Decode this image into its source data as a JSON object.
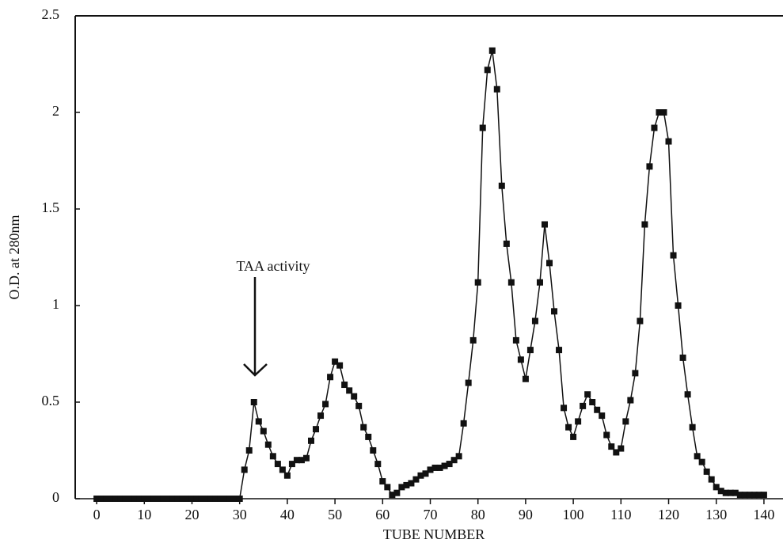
{
  "chart_data": {
    "type": "line",
    "xlabel": "TUBE NUMBER",
    "ylabel": "O.D. at 280nm",
    "annotation": "TAA activity",
    "x": [
      0,
      1,
      2,
      3,
      4,
      5,
      6,
      7,
      8,
      9,
      10,
      11,
      12,
      13,
      14,
      15,
      16,
      17,
      18,
      19,
      20,
      21,
      22,
      23,
      24,
      25,
      26,
      27,
      28,
      29,
      30,
      31,
      32,
      33,
      34,
      35,
      36,
      37,
      38,
      39,
      40,
      41,
      42,
      43,
      44,
      45,
      46,
      47,
      48,
      49,
      50,
      51,
      52,
      53,
      54,
      55,
      56,
      57,
      58,
      59,
      60,
      61,
      62,
      63,
      64,
      65,
      66,
      67,
      68,
      69,
      70,
      71,
      72,
      73,
      74,
      75,
      76,
      77,
      78,
      79,
      80,
      81,
      82,
      83,
      84,
      85,
      86,
      87,
      88,
      89,
      90,
      91,
      92,
      93,
      94,
      95,
      96,
      97,
      98,
      99,
      100,
      101,
      102,
      103,
      104,
      105,
      106,
      107,
      108,
      109,
      110,
      111,
      112,
      113,
      114,
      115,
      116,
      117,
      118,
      119,
      120,
      121,
      122,
      123,
      124,
      125,
      126,
      127,
      128,
      129,
      130,
      131,
      132,
      133,
      134,
      135,
      136,
      137,
      138,
      139,
      140
    ],
    "series": [
      {
        "color": "#111111",
        "values": [
          0,
          0,
          0,
          0,
          0,
          0,
          0,
          0,
          0,
          0,
          0,
          0,
          0,
          0,
          0,
          0,
          0,
          0,
          0,
          0,
          0,
          0,
          0,
          0,
          0,
          0,
          0,
          0,
          0,
          0,
          0,
          0.15,
          0.25,
          0.5,
          0.4,
          0.35,
          0.28,
          0.22,
          0.18,
          0.15,
          0.12,
          0.18,
          0.2,
          0.2,
          0.21,
          0.3,
          0.36,
          0.43,
          0.49,
          0.63,
          0.71,
          0.69,
          0.59,
          0.56,
          0.53,
          0.48,
          0.37,
          0.32,
          0.25,
          0.18,
          0.09,
          0.06,
          0.02,
          0.03,
          0.06,
          0.07,
          0.08,
          0.1,
          0.12,
          0.13,
          0.15,
          0.16,
          0.16,
          0.17,
          0.18,
          0.2,
          0.22,
          0.39,
          0.6,
          0.82,
          1.12,
          1.92,
          2.22,
          2.32,
          2.12,
          1.62,
          1.32,
          1.12,
          0.82,
          0.72,
          0.62,
          0.77,
          0.92,
          1.12,
          1.42,
          1.22,
          0.97,
          0.77,
          0.47,
          0.37,
          0.32,
          0.4,
          0.48,
          0.54,
          0.5,
          0.46,
          0.43,
          0.33,
          0.27,
          0.24,
          0.26,
          0.4,
          0.51,
          0.65,
          0.92,
          1.42,
          1.72,
          1.92,
          2.0,
          2.0,
          1.85,
          1.26,
          1.0,
          0.73,
          0.54,
          0.37,
          0.22,
          0.19,
          0.14,
          0.1,
          0.06,
          0.04,
          0.03,
          0.03,
          0.03,
          0.02,
          0.02,
          0.02,
          0.02,
          0.02,
          0.02
        ]
      }
    ],
    "xlim": [
      -4.5,
      144
    ],
    "ylim": [
      0,
      2.5
    ],
    "xticks": [
      0,
      10,
      20,
      30,
      40,
      50,
      60,
      70,
      80,
      90,
      100,
      110,
      120,
      130,
      140
    ],
    "yticks": [
      0,
      0.5,
      1,
      1.5,
      2,
      2.5
    ],
    "grid": false
  }
}
